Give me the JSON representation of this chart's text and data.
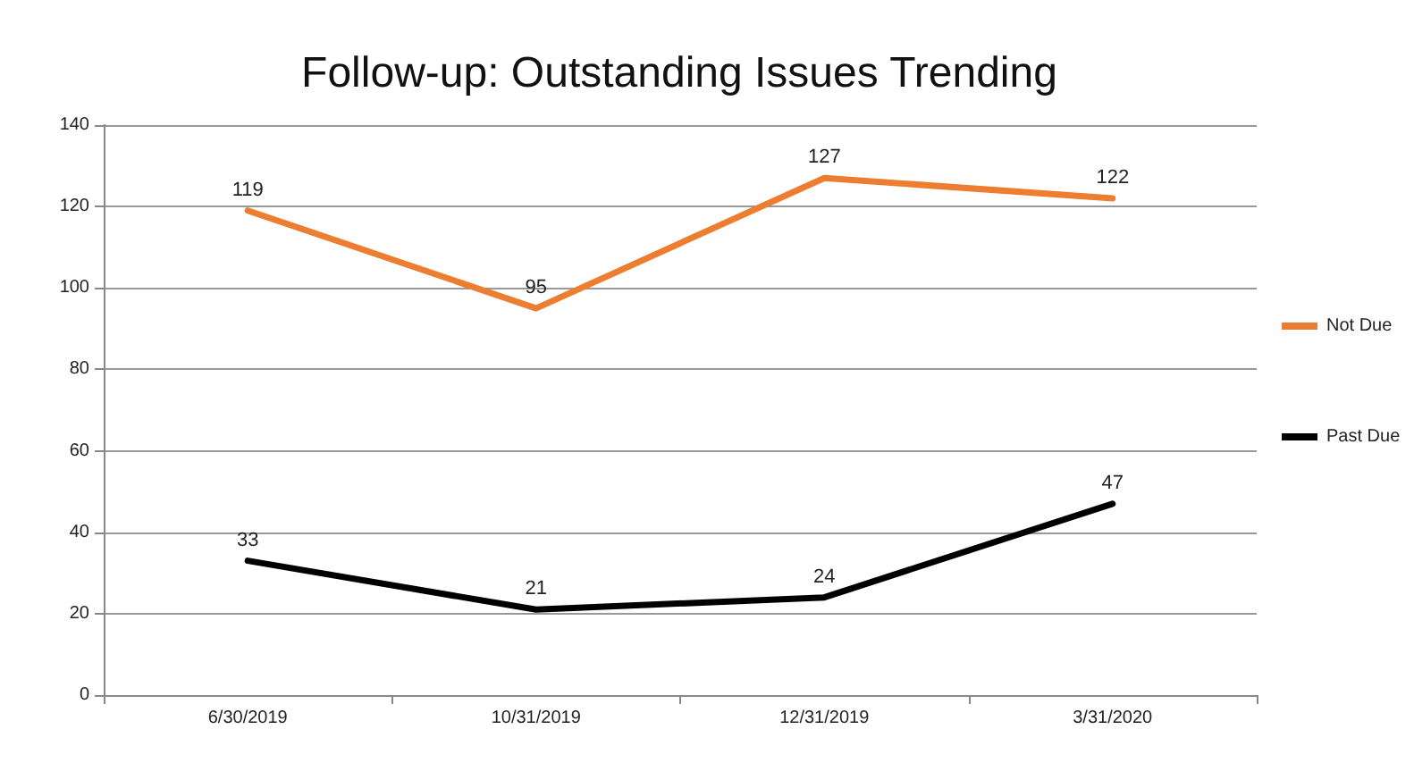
{
  "chart_data": {
    "type": "line",
    "title": "Follow-up: Outstanding Issues Trending",
    "categories": [
      "6/30/2019",
      "10/31/2019",
      "12/31/2019",
      "3/31/2020"
    ],
    "series": [
      {
        "name": "Not Due",
        "color": "#ed7d31",
        "values": [
          119,
          95,
          127,
          122
        ]
      },
      {
        "name": "Past Due",
        "color": "#000000",
        "values": [
          33,
          21,
          24,
          47
        ]
      }
    ],
    "ylim": [
      0,
      140
    ],
    "yticks": [
      0,
      20,
      40,
      60,
      80,
      100,
      120,
      140
    ],
    "grid": "y",
    "legend": "right",
    "data_labels": true,
    "marker": "none",
    "line_style": "solid"
  }
}
